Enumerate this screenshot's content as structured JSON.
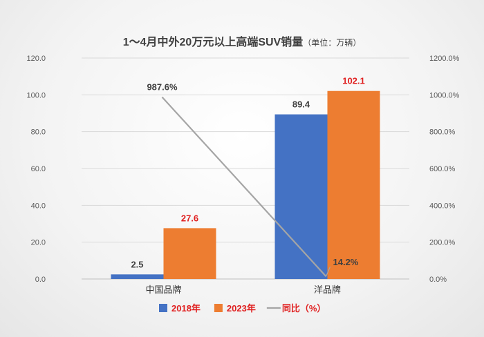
{
  "chart_data": {
    "type": "bar",
    "title": "1～4月中外20万元以上高端SUV销量",
    "title_unit": "（单位：万辆）",
    "categories": [
      "中国品牌",
      "洋品牌"
    ],
    "series": [
      {
        "name": "2018年",
        "type": "bar",
        "axis": "left",
        "color": "#4472C4",
        "label_color": "#404040",
        "values": [
          2.5,
          89.4
        ],
        "labels": [
          "2.5",
          "89.4"
        ]
      },
      {
        "name": "2023年",
        "type": "bar",
        "axis": "left",
        "color": "#ED7D31",
        "label_color": "#E02020",
        "values": [
          27.6,
          102.1
        ],
        "labels": [
          "27.6",
          "102.1"
        ]
      },
      {
        "name": "同比（%）",
        "type": "line",
        "axis": "right",
        "color": "#A5A5A5",
        "label_color": "#404040",
        "values": [
          987.6,
          14.2
        ],
        "labels": [
          "987.6%",
          "14.2%"
        ]
      }
    ],
    "y_left": {
      "min": 0,
      "max": 120,
      "step": 20,
      "tick_labels": [
        "0.0",
        "20.0",
        "40.0",
        "60.0",
        "80.0",
        "100.0",
        "120.0"
      ]
    },
    "y_right": {
      "min": 0,
      "max": 1200,
      "step": 200,
      "tick_labels": [
        "0.0%",
        "200.0%",
        "400.0%",
        "600.0%",
        "800.0%",
        "1000.0%",
        "1200.0%"
      ]
    },
    "grid": true,
    "legend_position": "bottom",
    "legend_text_color": "#E02020"
  }
}
